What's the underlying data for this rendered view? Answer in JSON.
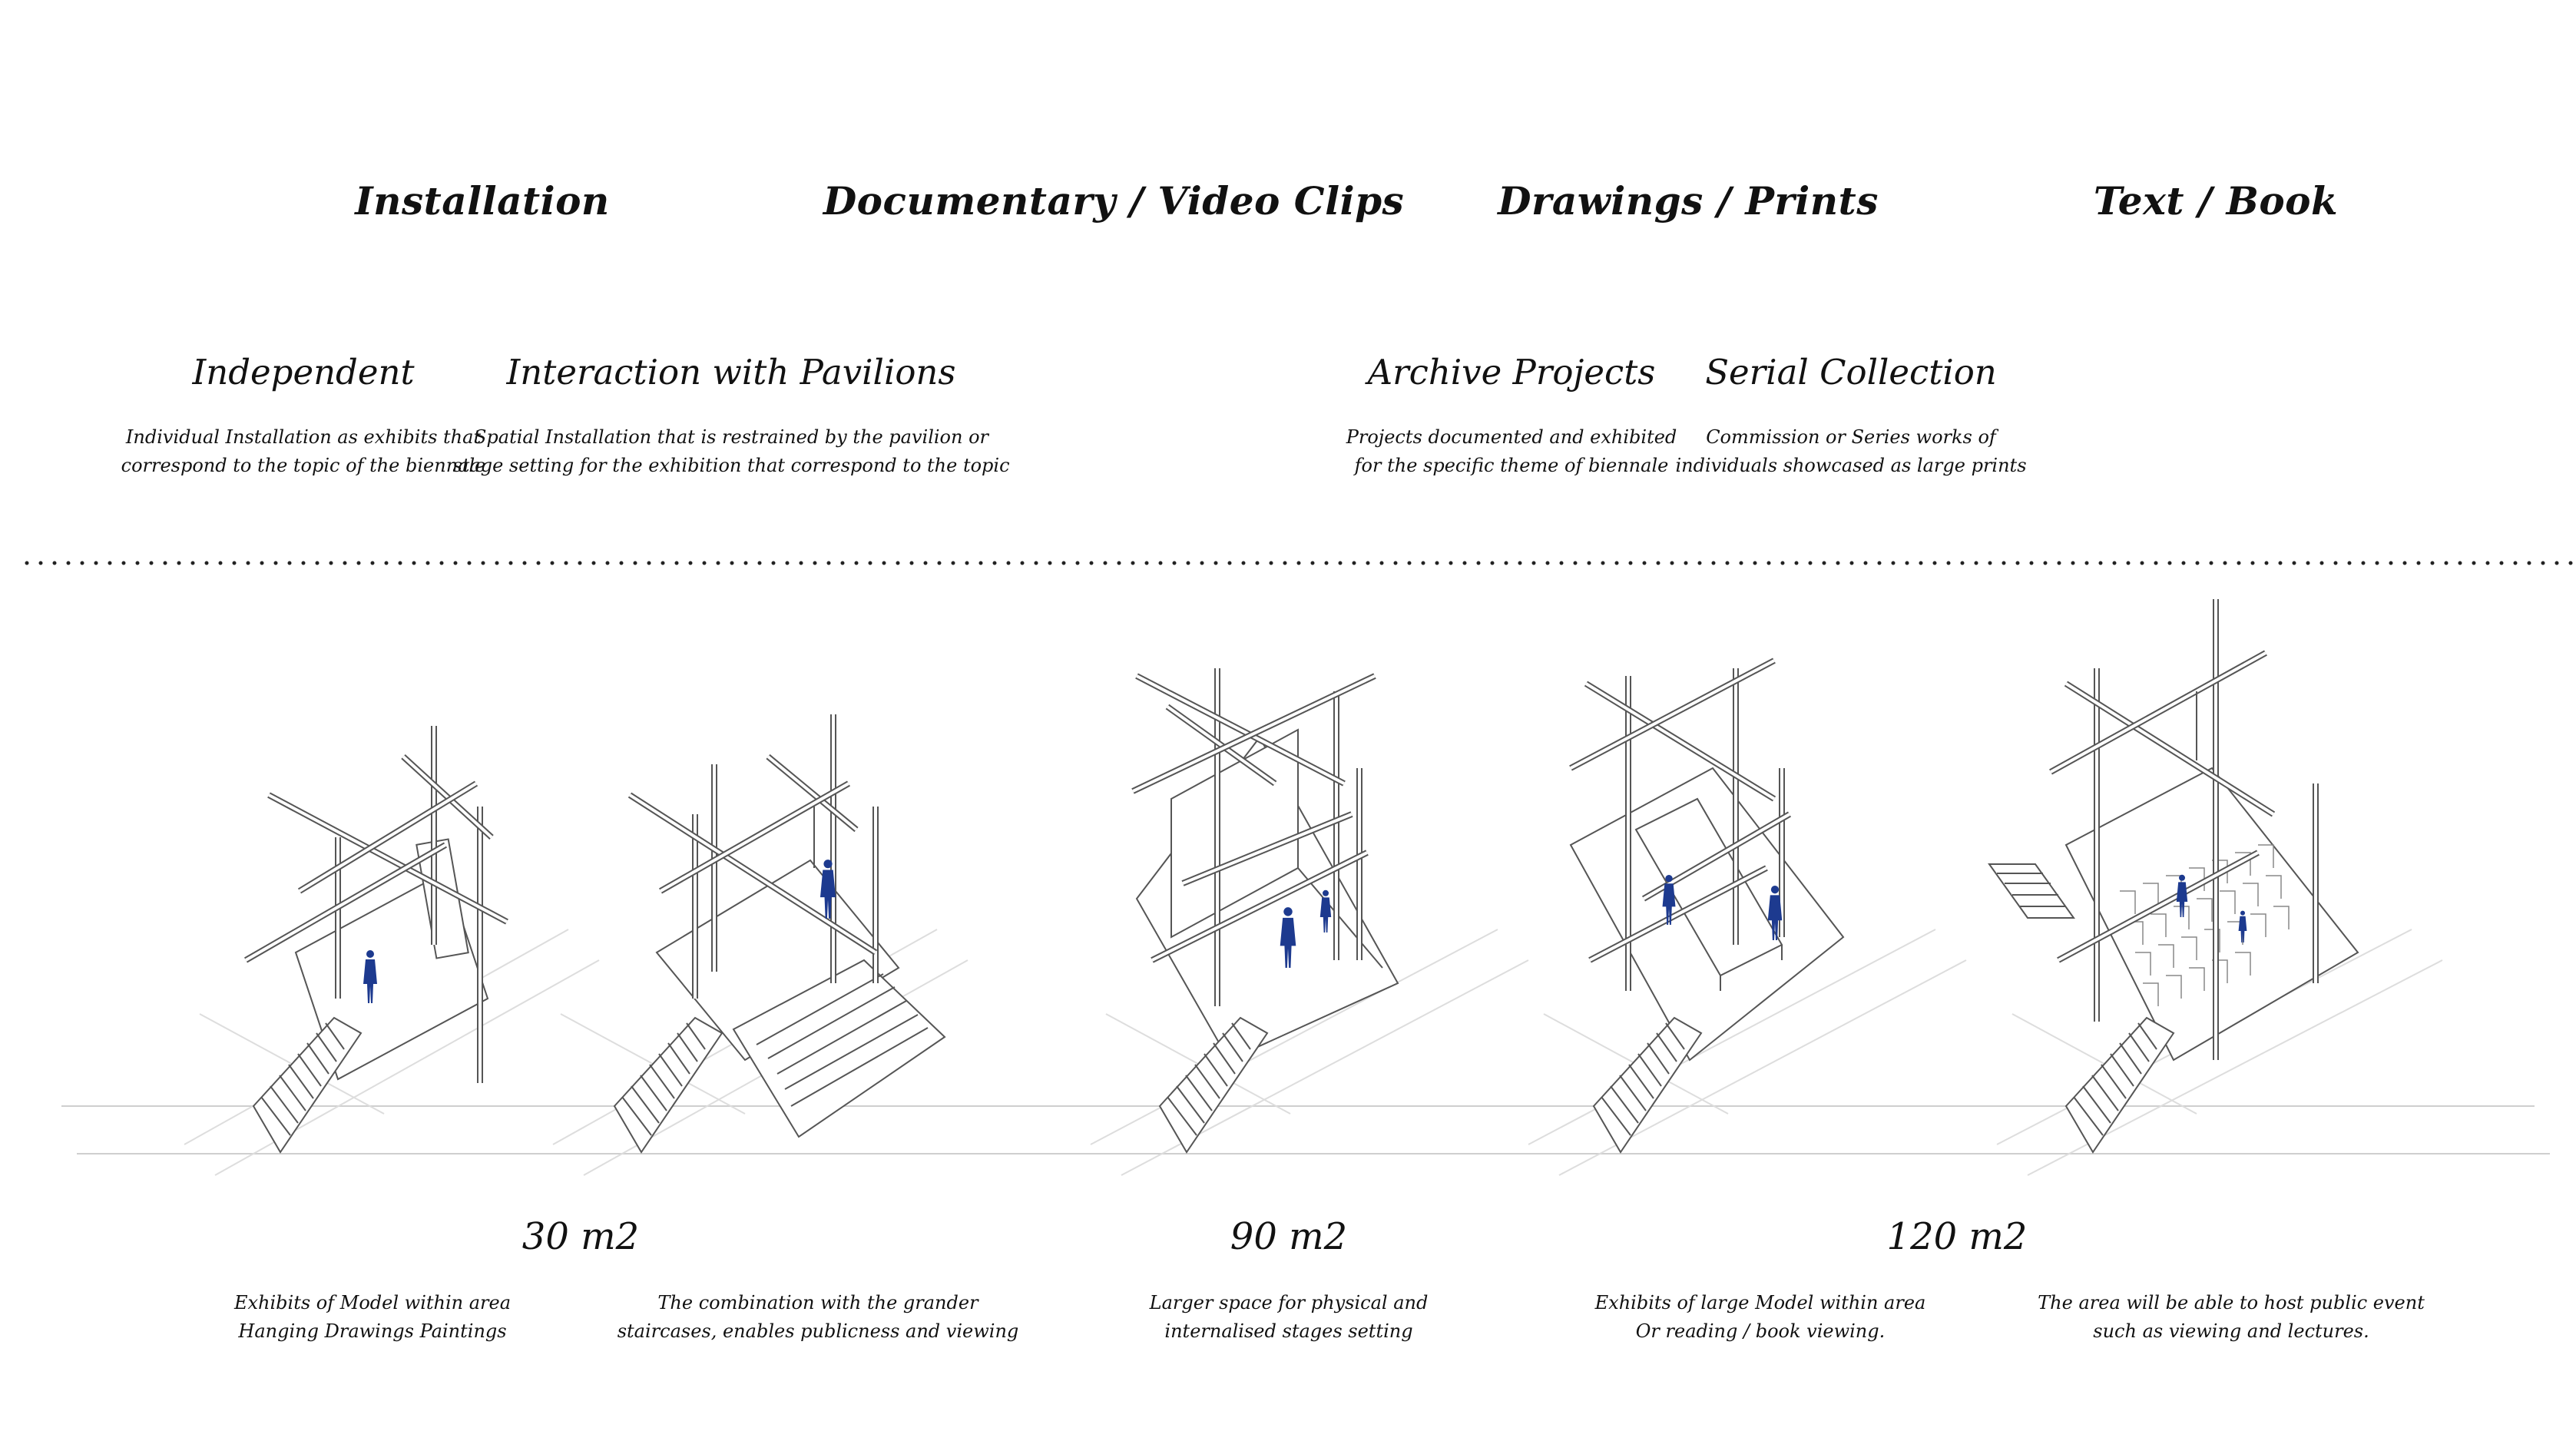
{
  "categories": [
    {
      "label": "Installation"
    },
    {
      "label": "Documentary / Video Clips"
    },
    {
      "label": "Drawings / Prints"
    },
    {
      "label": "Text / Book"
    }
  ],
  "subcategories": [
    {
      "title": "Independent",
      "line1": "Individual Installation as exhibits that",
      "line2": "correspond to the topic of the biennale"
    },
    {
      "title": "Interaction with Pavilions",
      "line1": "Spatial Installation that is restrained by the pavilion or",
      "line2": "stage setting for the exhibition that correspond to the topic"
    },
    {
      "title": "Archive Projects",
      "line1": "Projects documented and exhibited",
      "line2": "for the specific theme of biennale"
    },
    {
      "title": "Serial Collection",
      "line1": "Commission or Series works of",
      "line2": "individuals showcased as large prints"
    }
  ],
  "areas": [
    {
      "label": "30 m2"
    },
    {
      "label": "90 m2"
    },
    {
      "label": "120 m2"
    }
  ],
  "captions": [
    {
      "line1": "Exhibits of Model within area",
      "line2": "Hanging Drawings Paintings"
    },
    {
      "line1": "The combination with the grander",
      "line2": "staircases, enables publicness and viewing"
    },
    {
      "line1": "Larger space for physical and",
      "line2": "internalised stages setting"
    },
    {
      "line1": "Exhibits of large Model within area",
      "line2": "Or reading  /  book viewing."
    },
    {
      "line1": "The area will be able to host public event",
      "line2": "such as viewing and lectures."
    }
  ],
  "colors": {
    "figure": "#1d3a8f",
    "line": "#555555",
    "ground": "#cfcfcf"
  }
}
